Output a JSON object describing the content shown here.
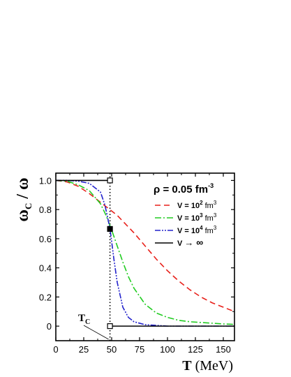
{
  "chart_data": {
    "type": "line",
    "xlabel": {
      "symbol": "T",
      "unit": "(MeV)"
    },
    "ylabel": {
      "num": "ω",
      "sub": "C",
      "den": " / ω"
    },
    "density_label": {
      "prefix": "ρ = 0.05 fm",
      "sup": "-3"
    },
    "xlim": [
      0,
      160
    ],
    "ylim": [
      -0.1,
      1.05
    ],
    "x_ticks": [
      "0",
      "25",
      "50",
      "75",
      "100",
      "125",
      "150"
    ],
    "x_tick_values": [
      0,
      25,
      50,
      75,
      100,
      125,
      150
    ],
    "y_ticks": [
      "0",
      "0.2",
      "0.4",
      "0.6",
      "0.8",
      "1.0"
    ],
    "y_tick_values": [
      0,
      0.2,
      0.4,
      0.6,
      0.8,
      1.0
    ],
    "tc_value": 48.5,
    "tc_label": {
      "main": "T",
      "sub": "C"
    },
    "series": [
      {
        "legend": {
          "prefix": "V = 10",
          "sup": "2",
          "unit": " fm",
          "unit_sup": "3"
        },
        "color": "#e8201a",
        "style": "dashed",
        "x": [
          0,
          10,
          20,
          30,
          40,
          45,
          50,
          55,
          60,
          70,
          80,
          90,
          100,
          110,
          120,
          130,
          140,
          150,
          160
        ],
        "y": [
          1.0,
          0.99,
          0.96,
          0.91,
          0.85,
          0.82,
          0.79,
          0.76,
          0.72,
          0.64,
          0.55,
          0.46,
          0.38,
          0.31,
          0.25,
          0.2,
          0.16,
          0.13,
          0.1
        ]
      },
      {
        "legend": {
          "prefix": "V = 10",
          "sup": "3",
          "unit": " fm",
          "unit_sup": "3"
        },
        "color": "#22cc22",
        "style": "dashdot",
        "x": [
          0,
          10,
          20,
          30,
          40,
          45,
          50,
          55,
          60,
          65,
          70,
          80,
          90,
          100,
          110,
          120,
          130,
          140,
          150,
          160
        ],
        "y": [
          1.0,
          0.995,
          0.97,
          0.93,
          0.84,
          0.76,
          0.66,
          0.55,
          0.44,
          0.34,
          0.26,
          0.15,
          0.09,
          0.06,
          0.04,
          0.03,
          0.025,
          0.02,
          0.015,
          0.012
        ]
      },
      {
        "legend": {
          "prefix": "V = 10",
          "sup": "4",
          "unit": " fm",
          "unit_sup": "3"
        },
        "color": "#2222cc",
        "style": "dashdotdot",
        "x": [
          0,
          10,
          20,
          30,
          40,
          44,
          48.5,
          52,
          55,
          60,
          65,
          70,
          80,
          100,
          120,
          140,
          160
        ],
        "y": [
          1.0,
          1.0,
          0.995,
          0.98,
          0.92,
          0.83,
          0.67,
          0.46,
          0.3,
          0.13,
          0.06,
          0.03,
          0.01,
          0.0,
          0.0,
          0.0,
          0.0
        ]
      },
      {
        "legend": {
          "prefix": "V ",
          "arrow": "→",
          "inf": " ∞"
        },
        "color": "#000000",
        "style": "solid",
        "segments": [
          {
            "x": [
              0,
              48.5
            ],
            "y": [
              1.0,
              1.0
            ]
          },
          {
            "x": [
              48.5,
              160
            ],
            "y": [
              0.0,
              0.0
            ]
          }
        ],
        "markers": [
          {
            "x": 48.5,
            "y": 1.0,
            "fill": "open"
          },
          {
            "x": 48.5,
            "y": 0.667,
            "fill": "filled"
          },
          {
            "x": 48.5,
            "y": 0.0,
            "fill": "open"
          }
        ]
      }
    ]
  }
}
